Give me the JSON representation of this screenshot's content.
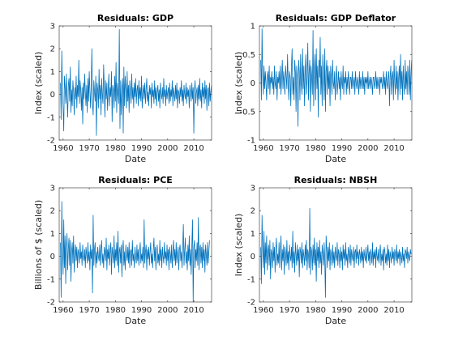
{
  "figure": {
    "series_color": "#0072bd"
  },
  "chart_data": [
    {
      "type": "line",
      "title": "Residuals: GDP",
      "xlabel": "Date",
      "ylabel": "Index (scaled)",
      "xlim": [
        1958.5,
        2016.8
      ],
      "ylim": [
        -2,
        3
      ],
      "xticks": [
        1960,
        1970,
        1980,
        1990,
        2000,
        2010
      ],
      "yticks": [
        -2,
        -1,
        0,
        1,
        2,
        3
      ],
      "series": [
        {
          "x_start": 1959.0,
          "x_step": 0.25,
          "y": [
            0.5,
            -1.1,
            1.9,
            0.2,
            -0.6,
            -1.6,
            0.8,
            0.3,
            -0.4,
            0.9,
            -0.2,
            -1.0,
            0.4,
            0.7,
            -0.3,
            1.2,
            -0.8,
            0.2,
            -0.5,
            0.6,
            0.1,
            -0.9,
            0.3,
            -0.2,
            0.8,
            -0.6,
            0.4,
            -0.1,
            1.5,
            -0.4,
            0.6,
            0.2,
            -0.7,
            0.3,
            -1.3,
            0.5,
            -0.2,
            0.9,
            0.1,
            -0.5,
            0.4,
            -0.8,
            0.7,
            -0.3,
            1.0,
            0.2,
            -0.6,
            0.3,
            2.0,
            -0.4,
            -0.9,
            0.6,
            0.1,
            -0.3,
            0.8,
            -1.8,
            0.5,
            0.2,
            -0.6,
            1.1,
            -0.2,
            0.4,
            -0.9,
            0.7,
            0.0,
            -0.4,
            1.3,
            0.3,
            -1.0,
            0.6,
            -0.2,
            0.5,
            -0.7,
            0.2,
            0.9,
            -0.5,
            0.3,
            -0.1,
            1.0,
            -1.2,
            0.4,
            0.2,
            -0.6,
            0.8,
            -0.3,
            1.4,
            -0.8,
            0.5,
            0.1,
            -0.4,
            2.85,
            -1.5,
            0.6,
            -0.9,
            0.3,
            0.7,
            -1.7,
            1.2,
            -0.5,
            0.8,
            0.2,
            -0.6,
            1.0,
            -0.3,
            0.4,
            -0.8,
            0.6,
            0.1,
            -0.4,
            0.9,
            -0.2,
            0.3,
            -0.6,
            0.5,
            -0.1,
            0.7,
            -0.4,
            0.2,
            0.4,
            -0.5,
            0.6,
            -0.2,
            0.3,
            -0.3,
            0.8,
            -0.6,
            0.1,
            0.4,
            -0.2,
            0.5,
            -0.4,
            0.2,
            0.7,
            -0.3,
            0.1,
            -0.5,
            0.4,
            0.0,
            0.3,
            -0.6,
            0.5,
            -0.1,
            0.2,
            -0.4,
            0.6,
            -0.2,
            0.3,
            -0.5,
            0.1,
            0.4,
            -0.3,
            0.2,
            -0.6,
            0.5,
            0.0,
            -0.2,
            0.3,
            -0.4,
            0.7,
            -0.1,
            0.2,
            -0.5,
            0.4,
            -0.2,
            0.1,
            0.3,
            -0.4,
            0.5,
            -0.3,
            0.2,
            -0.1,
            0.6,
            -0.5,
            0.3,
            0.0,
            -0.3,
            0.4,
            -0.2,
            0.5,
            -0.6,
            0.2,
            0.1,
            -0.4,
            0.3,
            -0.1,
            0.6,
            -0.3,
            0.2,
            -0.5,
            0.4,
            0.0,
            -0.2,
            0.5,
            -0.4,
            0.3,
            -0.1,
            0.2,
            -0.6,
            0.4,
            0.1,
            -0.3,
            0.5,
            -0.2,
            0.3,
            -1.7,
            0.2,
            0.6,
            -0.4,
            0.1,
            0.3,
            -0.5,
            0.4,
            -0.2,
            0.7,
            -0.3,
            0.2,
            -0.6,
            0.5,
            -0.1,
            0.3,
            -0.4,
            0.6,
            -0.2,
            0.4,
            -0.7,
            0.2,
            0.3,
            -0.5,
            0.5,
            -0.3,
            0.1,
            0.4,
            -0.9
          ]
        }
      ]
    },
    {
      "type": "line",
      "title": "Residuals: GDP Deflator",
      "xlabel": "Date",
      "ylabel": "Index (scaled)",
      "xlim": [
        1958.5,
        2016.8
      ],
      "ylim": [
        -1,
        1
      ],
      "xticks": [
        1960,
        1970,
        1980,
        1990,
        2000,
        2010
      ],
      "yticks": [
        -1,
        -0.5,
        0,
        0.5,
        1
      ],
      "series": [
        {
          "x_start": 1959.0,
          "x_step": 0.25,
          "y": [
            0.4,
            -0.3,
            0.95,
            0.1,
            -0.2,
            0.3,
            -0.1,
            0.2,
            0.0,
            -0.3,
            0.1,
            0.2,
            -0.1,
            0.3,
            -0.2,
            0.1,
            0.0,
            0.2,
            -0.1,
            0.1,
            -0.2,
            0.3,
            0.0,
            -0.1,
            0.2,
            -0.3,
            0.1,
            0.0,
            0.2,
            -0.1,
            0.3,
            -0.2,
            0.1,
            0.4,
            -0.1,
            0.2,
            0.0,
            -0.2,
            0.3,
            0.1,
            -0.1,
            0.5,
            0.0,
            -0.3,
            0.2,
            0.1,
            -0.4,
            0.3,
            0.6,
            -0.2,
            0.1,
            -0.3,
            0.4,
            0.2,
            -0.5,
            0.3,
            0.1,
            -0.76,
            0.4,
            0.2,
            -0.3,
            0.5,
            0.0,
            -0.2,
            0.6,
            -0.1,
            0.3,
            -0.4,
            0.2,
            0.5,
            -0.2,
            0.1,
            0.7,
            -0.3,
            0.2,
            0.4,
            -0.5,
            0.3,
            0.1,
            -0.2,
            0.92,
            -0.4,
            0.2,
            0.5,
            -0.3,
            0.6,
            -0.1,
            0.3,
            -0.6,
            0.4,
            0.1,
            0.8,
            -0.2,
            0.3,
            -0.4,
            0.5,
            0.2,
            -0.3,
            0.6,
            -0.5,
            0.2,
            0.4,
            -0.2,
            0.3,
            -0.1,
            0.2,
            -0.4,
            0.3,
            0.1,
            -0.2,
            0.4,
            0.0,
            -0.1,
            0.2,
            -0.3,
            0.1,
            0.3,
            -0.2,
            0.0,
            0.2,
            -0.1,
            0.1,
            -0.3,
            0.2,
            0.0,
            -0.1,
            0.3,
            -0.2,
            0.1,
            0.0,
            0.2,
            -0.2,
            0.1,
            -0.1,
            0.2,
            0.0,
            -0.2,
            0.1,
            0.1,
            -0.1,
            0.2,
            -0.1,
            0.0,
            0.1,
            -0.2,
            0.2,
            0.0,
            -0.1,
            0.1,
            0.0,
            -0.2,
            0.2,
            -0.1,
            0.1,
            0.0,
            -0.1,
            0.2,
            -0.1,
            0.1,
            -0.2,
            0.1,
            0.0,
            0.1,
            -0.1,
            0.2,
            -0.1,
            0.0,
            0.1,
            -0.1,
            0.1,
            0.0,
            -0.2,
            0.1,
            0.1,
            -0.1,
            0.0,
            0.2,
            -0.1,
            0.1,
            -0.1,
            0.0,
            0.1,
            -0.2,
            0.1,
            0.0,
            0.1,
            -0.1,
            0.0,
            0.2,
            -0.1,
            0.1,
            -0.2,
            0.2,
            0.0,
            -0.1,
            0.1,
            0.2,
            -0.4,
            0.1,
            0.3,
            -0.2,
            0.1,
            0.2,
            -0.3,
            0.4,
            0.0,
            -0.2,
            0.3,
            -0.1,
            0.2,
            -0.3,
            0.1,
            0.3,
            -0.2,
            0.5,
            -0.1,
            0.2,
            -0.3,
            0.3,
            0.0,
            -0.2,
            0.4,
            -0.1,
            0.2,
            -0.2,
            0.3,
            0.1,
            -0.2,
            0.4,
            -0.3,
            0.2,
            0.4
          ]
        }
      ]
    },
    {
      "type": "line",
      "title": "Residuals: PCE",
      "xlabel": "Date",
      "ylabel": "Billions of $ (scaled)",
      "xlim": [
        1958.5,
        2016.8
      ],
      "ylim": [
        -2,
        3
      ],
      "xticks": [
        1960,
        1970,
        1980,
        1990,
        2000,
        2010
      ],
      "yticks": [
        -2,
        -1,
        0,
        1,
        2,
        3
      ],
      "series": [
        {
          "x_start": 1959.0,
          "x_step": 0.25,
          "y": [
            0.6,
            -1.8,
            2.4,
            0.3,
            -0.8,
            1.6,
            -0.5,
            0.9,
            -1.2,
            0.4,
            1.0,
            -0.6,
            0.3,
            0.8,
            -0.4,
            0.7,
            -1.1,
            0.2,
            0.6,
            -0.3,
            0.9,
            -0.7,
            0.1,
            0.5,
            -0.2,
            0.4,
            -0.5,
            0.3,
            0.1,
            -0.3,
            0.6,
            -0.1,
            0.2,
            -0.4,
            0.5,
            0.0,
            -0.2,
            0.3,
            -0.5,
            0.4,
            0.1,
            -0.3,
            0.6,
            -0.2,
            0.2,
            -0.6,
            0.5,
            -0.1,
            0.3,
            -1.6,
            1.8,
            -0.4,
            0.3,
            0.6,
            -0.5,
            0.2,
            -0.3,
            0.4,
            0.0,
            -0.2,
            0.5,
            -0.4,
            0.3,
            0.7,
            -0.3,
            0.1,
            -0.5,
            0.4,
            0.2,
            -0.2,
            0.8,
            -0.6,
            0.3,
            -0.1,
            0.5,
            -0.4,
            0.2,
            0.6,
            -0.8,
            0.4,
            0.1,
            -0.3,
            0.9,
            -0.5,
            0.3,
            -0.2,
            0.6,
            -0.4,
            1.1,
            -0.7,
            0.2,
            0.4,
            -0.3,
            0.5,
            -0.9,
            0.3,
            0.7,
            -0.4,
            0.2,
            -0.6,
            0.5,
            0.1,
            -0.2,
            0.4,
            -0.3,
            0.6,
            -0.5,
            0.2,
            0.3,
            -0.4,
            0.7,
            -0.2,
            0.1,
            -0.5,
            0.4,
            0.0,
            -0.3,
            0.5,
            -0.2,
            0.3,
            -0.4,
            0.2,
            0.6,
            -0.3,
            0.1,
            -0.2,
            0.4,
            -0.5,
            1.6,
            -0.3,
            0.2,
            0.5,
            -0.6,
            0.3,
            -0.1,
            0.4,
            -0.4,
            0.2,
            0.6,
            -0.3,
            0.1,
            -0.5,
            0.3,
            0.8,
            -0.2,
            0.4,
            -0.6,
            0.2,
            0.5,
            -0.3,
            0.1,
            -0.4,
            0.7,
            -0.2,
            0.3,
            -0.5,
            0.4,
            0.0,
            -0.3,
            0.6,
            -0.1,
            0.2,
            -0.4,
            0.5,
            -0.2,
            0.3,
            -0.6,
            0.4,
            0.1,
            -0.3,
            0.5,
            -0.5,
            0.2,
            0.7,
            -0.2,
            0.3,
            -0.4,
            0.6,
            -0.3,
            0.1,
            0.4,
            -0.6,
            0.3,
            0.5,
            -0.2,
            0.2,
            -0.5,
            0.4,
            1.4,
            -0.4,
            0.3,
            0.8,
            -0.3,
            0.2,
            -0.6,
            0.5,
            -0.2,
            0.9,
            -0.4,
            0.3,
            -0.8,
            0.5,
            1.6,
            -2.0,
            0.4,
            0.7,
            -0.5,
            0.3,
            -0.2,
            0.6,
            -0.4,
            1.7,
            -0.6,
            0.3,
            0.5,
            -0.3,
            0.4,
            -0.5,
            0.6,
            -0.2,
            0.3,
            -0.7,
            0.5,
            0.1,
            -0.4,
            0.6,
            -0.3,
            0.2,
            0.7
          ]
        }
      ]
    },
    {
      "type": "line",
      "title": "Residuals: NBSH",
      "xlabel": "Date",
      "ylabel": "Index (scaled)",
      "xlim": [
        1958.5,
        2016.8
      ],
      "ylim": [
        -2,
        3
      ],
      "xticks": [
        1960,
        1970,
        1980,
        1990,
        2000,
        2010
      ],
      "yticks": [
        -2,
        -1,
        0,
        1,
        2,
        3
      ],
      "series": [
        {
          "x_start": 1959.0,
          "x_step": 0.25,
          "y": [
            0.4,
            -1.2,
            1.8,
            0.3,
            -0.5,
            1.1,
            -0.8,
            0.6,
            -0.3,
            0.9,
            -0.6,
            0.2,
            0.5,
            -0.4,
            0.7,
            -1.0,
            0.3,
            0.1,
            -0.5,
            0.6,
            -0.2,
            0.4,
            -0.7,
            0.3,
            0.8,
            -0.4,
            0.1,
            -0.3,
            0.6,
            -0.5,
            0.2,
            0.9,
            -0.6,
            0.3,
            -0.2,
            0.5,
            -0.8,
            0.4,
            0.1,
            -0.4,
            0.7,
            -0.3,
            0.2,
            -0.6,
            0.5,
            0.0,
            -0.2,
            0.4,
            -0.5,
            1.1,
            -0.3,
            0.2,
            -0.7,
            0.6,
            0.1,
            -0.4,
            0.5,
            -0.2,
            0.3,
            -0.9,
            0.4,
            0.2,
            -0.3,
            0.6,
            -0.5,
            0.3,
            0.0,
            -0.4,
            0.5,
            -0.2,
            0.7,
            -0.6,
            0.3,
            0.1,
            -0.5,
            2.1,
            -0.8,
            0.4,
            0.2,
            -0.6,
            0.5,
            -0.3,
            0.8,
            -0.4,
            0.3,
            -1.1,
            0.6,
            -0.2,
            0.4,
            -0.5,
            0.7,
            -0.3,
            0.2,
            -0.8,
            0.5,
            0.1,
            -0.4,
            0.6,
            -0.2,
            -1.8,
            0.9,
            0.3,
            -0.5,
            0.4,
            -0.2,
            0.6,
            -0.6,
            0.3,
            0.1,
            -0.4,
            0.5,
            -0.3,
            0.2,
            -0.5,
            0.4,
            0.0,
            -0.2,
            0.6,
            -0.4,
            0.3,
            0.1,
            -0.5,
            0.4,
            -0.2,
            0.2,
            -0.6,
            0.5,
            -0.1,
            0.3,
            -0.4,
            0.6,
            -0.2,
            0.1,
            -0.5,
            0.4,
            0.2,
            -0.3,
            0.5,
            -0.4,
            0.3,
            0.0,
            -0.2,
            0.4,
            -0.5,
            0.2,
            0.3,
            -0.3,
            0.5,
            -0.1,
            0.2,
            -0.4,
            0.3,
            0.1,
            -0.3,
            0.4,
            -0.2,
            0.2,
            -0.5,
            0.3,
            0.0,
            -0.2,
            0.4,
            -0.3,
            0.1,
            0.5,
            -0.2,
            0.2,
            -0.4,
            0.3,
            0.1,
            -0.3,
            0.6,
            -0.4,
            0.2,
            -0.1,
            0.3,
            -0.5,
            0.4,
            0.0,
            -0.2,
            0.3,
            -0.3,
            0.2,
            0.5,
            -0.4,
            0.1,
            -0.2,
            0.3,
            -0.6,
            0.4,
            0.2,
            -0.3,
            0.1,
            -0.4,
            0.5,
            -0.2,
            0.3,
            -0.5,
            0.2,
            0.0,
            -0.3,
            0.4,
            -0.1,
            0.2,
            -0.4,
            0.3,
            0.1,
            -0.2,
            0.5,
            -0.3,
            0.2,
            -0.1,
            0.3,
            -0.4,
            0.2,
            0.0,
            -0.3,
            0.4,
            -0.2,
            0.1,
            -0.5,
            0.3,
            0.2,
            -0.1,
            0.4,
            -0.3,
            0.2,
            0.0,
            -0.2,
            0.3,
            0.1
          ]
        }
      ]
    }
  ]
}
